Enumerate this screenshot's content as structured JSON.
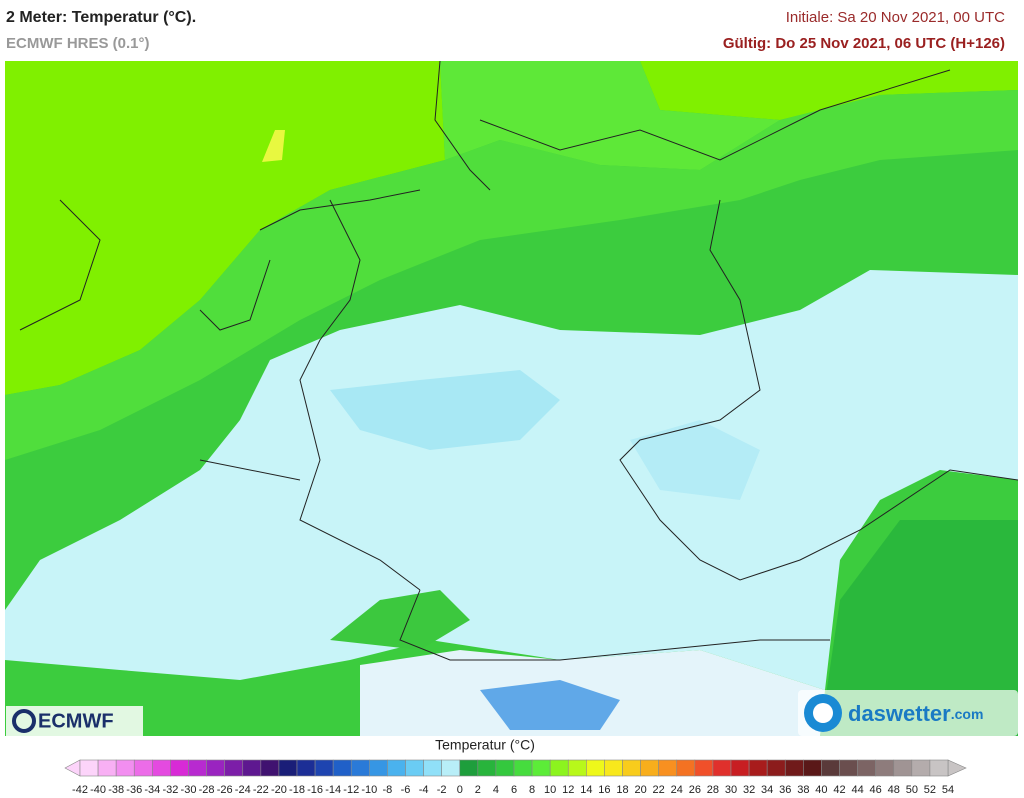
{
  "header": {
    "title": "2 Meter: Temperatur (°C).",
    "model": "ECMWF HRES (0.1°)",
    "init": "Initiale: Sa 20 Nov 2021, 00 UTC",
    "valid": "Gültig: Do 25 Nov 2021, 06 UTC (H+126)"
  },
  "logos": {
    "left": "ECMWF",
    "right_name": "daswetter",
    "right_domain": ".com"
  },
  "colorbar": {
    "title": "Temperatur (°C)",
    "ticks": [
      -42,
      -40,
      -38,
      -36,
      -34,
      -32,
      -30,
      -28,
      -26,
      -24,
      -22,
      -20,
      -18,
      -16,
      -14,
      -12,
      -10,
      -8,
      -6,
      -4,
      -2,
      0,
      2,
      4,
      6,
      8,
      10,
      12,
      14,
      16,
      18,
      20,
      22,
      24,
      26,
      28,
      30,
      32,
      34,
      36,
      38,
      40,
      42,
      44,
      46,
      48,
      50,
      52,
      54
    ],
    "colors": [
      "#fcd4fa",
      "#f8b0f4",
      "#f28ef0",
      "#ec6ce8",
      "#e44ae0",
      "#d82ad6",
      "#b82ad0",
      "#9a24c0",
      "#7c1ea8",
      "#5e1890",
      "#401270",
      "#1a1e78",
      "#1c2e96",
      "#1e44b0",
      "#2060c8",
      "#2a7ad8",
      "#3696e4",
      "#4ab2ee",
      "#6accf4",
      "#90e0f8",
      "#b8eef8",
      "#1e9e3c",
      "#28b43c",
      "#34c83e",
      "#46dc3e",
      "#5cec38",
      "#8cf41e",
      "#b8f81a",
      "#eef81a",
      "#f8e81c",
      "#f8cc1c",
      "#f8ae1c",
      "#f89020",
      "#f47222",
      "#f0502a",
      "#e0302c",
      "#c81e22",
      "#a81c1c",
      "#8c1c1c",
      "#701a1a",
      "#5a1818",
      "#5a3a3a",
      "#6a4e4e",
      "#7c6464",
      "#8e7c7c",
      "#a09494",
      "#b4acac",
      "#c8c4c4"
    ]
  }
}
